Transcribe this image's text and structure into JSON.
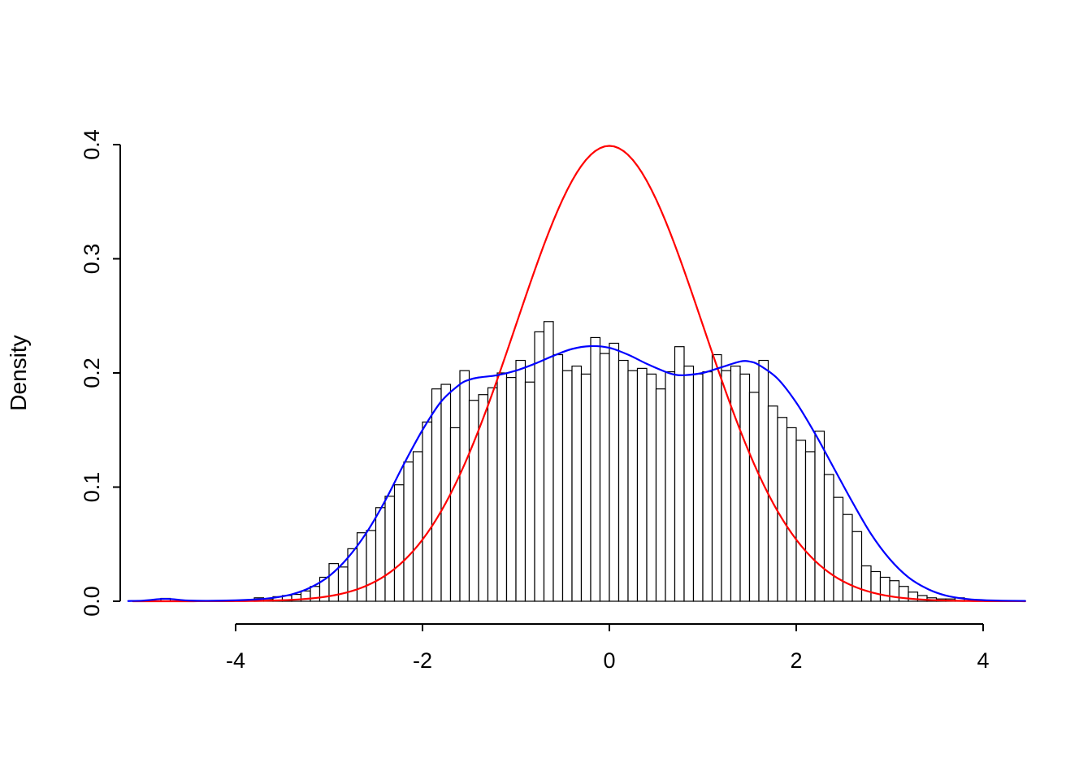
{
  "chart_data": {
    "type": "bar",
    "subtype": "histogram-with-density-curves",
    "title": "",
    "xlabel": "",
    "ylabel": "Density",
    "x_ticks": [
      -4,
      -2,
      0,
      2,
      4
    ],
    "x_tick_labels": [
      "-4",
      "-2",
      "0",
      "2",
      "4"
    ],
    "y_ticks": [
      0.0,
      0.1,
      0.2,
      0.3,
      0.4
    ],
    "y_tick_labels": [
      "0.0",
      "0.1",
      "0.2",
      "0.3",
      "0.4"
    ],
    "xlim": [
      -5.15,
      4.45
    ],
    "ylim": [
      0,
      0.4
    ],
    "grid": false,
    "legend": "none",
    "colors": {
      "hist_fill": "#ffffff",
      "hist_stroke": "#000000",
      "normal_curve": "#ff0000",
      "kde_curve": "#0000ff",
      "axis": "#000000"
    },
    "histogram": {
      "bin_width": 0.1,
      "bins": [
        [
          -4.8,
          0.0025
        ],
        [
          -3.8,
          0.003
        ],
        [
          -3.7,
          0.002
        ],
        [
          -3.6,
          0.004
        ],
        [
          -3.5,
          0.005
        ],
        [
          -3.4,
          0.006
        ],
        [
          -3.3,
          0.009
        ],
        [
          -3.2,
          0.013
        ],
        [
          -3.1,
          0.021
        ],
        [
          -3.0,
          0.033
        ],
        [
          -2.9,
          0.03
        ],
        [
          -2.8,
          0.046
        ],
        [
          -2.7,
          0.06
        ],
        [
          -2.6,
          0.062
        ],
        [
          -2.5,
          0.082
        ],
        [
          -2.4,
          0.092
        ],
        [
          -2.3,
          0.102
        ],
        [
          -2.2,
          0.122
        ],
        [
          -2.1,
          0.131
        ],
        [
          -2.0,
          0.157
        ],
        [
          -1.9,
          0.186
        ],
        [
          -1.8,
          0.19
        ],
        [
          -1.7,
          0.152
        ],
        [
          -1.6,
          0.202
        ],
        [
          -1.5,
          0.176
        ],
        [
          -1.4,
          0.181
        ],
        [
          -1.3,
          0.187
        ],
        [
          -1.2,
          0.2
        ],
        [
          -1.1,
          0.196
        ],
        [
          -1.0,
          0.211
        ],
        [
          -0.9,
          0.192
        ],
        [
          -0.8,
          0.236
        ],
        [
          -0.7,
          0.245
        ],
        [
          -0.6,
          0.216
        ],
        [
          -0.5,
          0.202
        ],
        [
          -0.4,
          0.206
        ],
        [
          -0.3,
          0.199
        ],
        [
          -0.2,
          0.231
        ],
        [
          -0.1,
          0.217
        ],
        [
          0.0,
          0.226
        ],
        [
          0.1,
          0.211
        ],
        [
          0.2,
          0.202
        ],
        [
          0.3,
          0.204
        ],
        [
          0.4,
          0.199
        ],
        [
          0.5,
          0.186
        ],
        [
          0.6,
          0.201
        ],
        [
          0.7,
          0.223
        ],
        [
          0.8,
          0.206
        ],
        [
          0.9,
          0.199
        ],
        [
          1.0,
          0.201
        ],
        [
          1.1,
          0.216
        ],
        [
          1.2,
          0.202
        ],
        [
          1.3,
          0.206
        ],
        [
          1.4,
          0.199
        ],
        [
          1.5,
          0.183
        ],
        [
          1.6,
          0.211
        ],
        [
          1.7,
          0.171
        ],
        [
          1.8,
          0.161
        ],
        [
          1.9,
          0.152
        ],
        [
          2.0,
          0.141
        ],
        [
          2.1,
          0.131
        ],
        [
          2.2,
          0.149
        ],
        [
          2.3,
          0.111
        ],
        [
          2.4,
          0.091
        ],
        [
          2.5,
          0.076
        ],
        [
          2.6,
          0.061
        ],
        [
          2.7,
          0.031
        ],
        [
          2.8,
          0.026
        ],
        [
          2.9,
          0.021
        ],
        [
          3.0,
          0.018
        ],
        [
          3.1,
          0.013
        ],
        [
          3.2,
          0.008
        ],
        [
          3.3,
          0.005
        ],
        [
          3.4,
          0.003
        ],
        [
          3.5,
          0.002
        ],
        [
          3.6,
          0.002
        ],
        [
          3.7,
          0.003
        ]
      ]
    },
    "series": [
      {
        "name": "normal-density-curve",
        "type": "normal_pdf",
        "mean": 0,
        "sd": 1,
        "peak": 0.3989,
        "color": "#ff0000",
        "x_range": [
          -5.1,
          4.45
        ]
      },
      {
        "name": "kernel-density-curve",
        "type": "polyline",
        "color": "#0000ff",
        "points": [
          [
            -5.15,
            0.0002
          ],
          [
            -5.0,
            0.0005
          ],
          [
            -4.9,
            0.0012
          ],
          [
            -4.8,
            0.002
          ],
          [
            -4.7,
            0.002
          ],
          [
            -4.6,
            0.0012
          ],
          [
            -4.5,
            0.0006
          ],
          [
            -4.3,
            0.0004
          ],
          [
            -4.0,
            0.0008
          ],
          [
            -3.8,
            0.0015
          ],
          [
            -3.6,
            0.003
          ],
          [
            -3.4,
            0.006
          ],
          [
            -3.2,
            0.012
          ],
          [
            -3.0,
            0.022
          ],
          [
            -2.8,
            0.038
          ],
          [
            -2.6,
            0.06
          ],
          [
            -2.4,
            0.088
          ],
          [
            -2.2,
            0.12
          ],
          [
            -2.0,
            0.15
          ],
          [
            -1.8,
            0.175
          ],
          [
            -1.6,
            0.19
          ],
          [
            -1.5,
            0.194
          ],
          [
            -1.4,
            0.196
          ],
          [
            -1.2,
            0.198
          ],
          [
            -1.0,
            0.202
          ],
          [
            -0.8,
            0.208
          ],
          [
            -0.6,
            0.215
          ],
          [
            -0.4,
            0.221
          ],
          [
            -0.2,
            0.2235
          ],
          [
            0.0,
            0.222
          ],
          [
            0.2,
            0.216
          ],
          [
            0.4,
            0.208
          ],
          [
            0.6,
            0.201
          ],
          [
            0.7,
            0.1985
          ],
          [
            0.8,
            0.198
          ],
          [
            1.0,
            0.2
          ],
          [
            1.2,
            0.205
          ],
          [
            1.4,
            0.21
          ],
          [
            1.5,
            0.21
          ],
          [
            1.6,
            0.207
          ],
          [
            1.8,
            0.195
          ],
          [
            2.0,
            0.174
          ],
          [
            2.2,
            0.147
          ],
          [
            2.4,
            0.117
          ],
          [
            2.6,
            0.087
          ],
          [
            2.8,
            0.059
          ],
          [
            3.0,
            0.037
          ],
          [
            3.2,
            0.021
          ],
          [
            3.4,
            0.011
          ],
          [
            3.6,
            0.005
          ],
          [
            3.8,
            0.0022
          ],
          [
            4.0,
            0.001
          ],
          [
            4.2,
            0.0005
          ],
          [
            4.45,
            0.0003
          ]
        ]
      }
    ]
  }
}
